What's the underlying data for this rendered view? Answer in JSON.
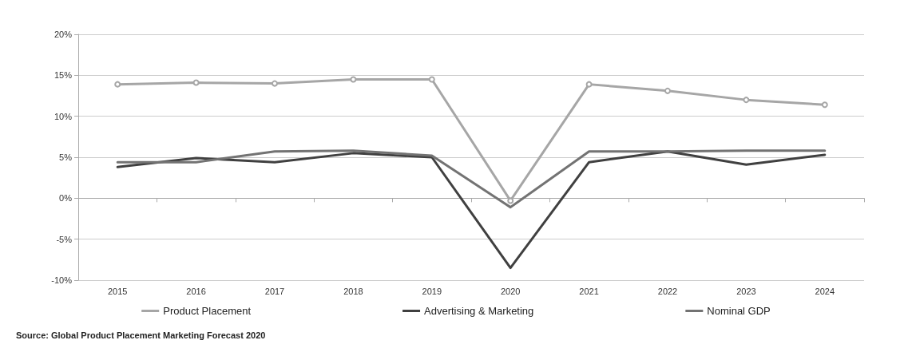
{
  "chart_data": {
    "type": "line",
    "categories": [
      "2015",
      "2016",
      "2017",
      "2018",
      "2019",
      "2020",
      "2021",
      "2022",
      "2023",
      "2024"
    ],
    "series": [
      {
        "name": "Product Placement",
        "color": "#a6a6a6",
        "marker": "circle",
        "values": [
          13.9,
          14.1,
          14.0,
          14.5,
          14.5,
          -0.3,
          13.9,
          13.1,
          12.0,
          11.4
        ]
      },
      {
        "name": "Advertising & Marketing",
        "color": "#404040",
        "values": [
          3.8,
          4.9,
          4.4,
          5.5,
          5.0,
          -8.5,
          4.4,
          5.7,
          4.1,
          5.3
        ]
      },
      {
        "name": "Nominal GDP",
        "color": "#737373",
        "values": [
          4.4,
          4.4,
          5.7,
          5.8,
          5.2,
          -1.1,
          5.7,
          5.7,
          5.8,
          5.8
        ]
      }
    ],
    "ylim": [
      -10,
      20
    ],
    "yticks": [
      {
        "value": -10,
        "label": "-10%"
      },
      {
        "value": -5,
        "label": "-5%"
      },
      {
        "value": 0,
        "label": "0%"
      },
      {
        "value": 5,
        "label": "5%"
      },
      {
        "value": 10,
        "label": "10%"
      },
      {
        "value": 15,
        "label": "15%"
      },
      {
        "value": 20,
        "label": "20%"
      }
    ],
    "grid": "y",
    "legend": "bottom",
    "line_style": "solid",
    "annotations": [
      "Source: Global Product Placement Marketing Forecast 2020"
    ]
  }
}
